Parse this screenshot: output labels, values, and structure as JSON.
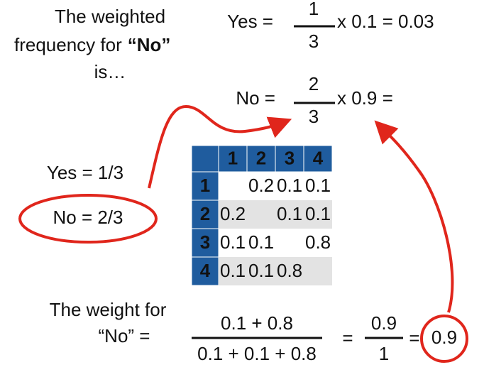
{
  "intro": {
    "line1": "The weighted",
    "line2": "frequency for",
    "bold": "“No”",
    "line3": "is…"
  },
  "yes_equation": {
    "lhs": "Yes =",
    "numerator": "1",
    "denominator": "3",
    "rest": "x 0.1 = 0.03"
  },
  "no_equation": {
    "lhs": "No =",
    "numerator": "2",
    "denominator": "3",
    "rest": "x 0.9 ="
  },
  "priors": {
    "yes": "Yes = 1/3",
    "no": "No = 2/3"
  },
  "table": {
    "header": [
      null,
      "1",
      "2",
      "3",
      "4"
    ],
    "rows": [
      [
        "1",
        null,
        "0.2",
        "0.1",
        "0.1"
      ],
      [
        "2",
        "0.2",
        null,
        "0.1",
        "0.1"
      ],
      [
        "3",
        "0.1",
        "0.1",
        null,
        "0.8"
      ],
      [
        "4",
        "0.1",
        "0.1",
        "0.8",
        null
      ]
    ]
  },
  "weight": {
    "label1": "The weight for",
    "label2": "“No” =",
    "numerator": "0.1 + 0.8",
    "denominator": "0.1 + 0.1 + 0.8",
    "eq1": "=",
    "numerator2": "0.9",
    "denominator2": "1",
    "eq2": "=",
    "result": "0.9"
  }
}
